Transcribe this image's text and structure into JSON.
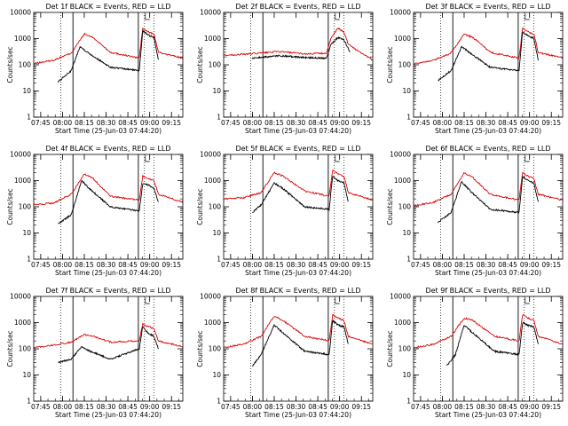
{
  "chart_data": {
    "type": "line",
    "yscale": "log",
    "ylim": [
      1,
      10000
    ],
    "xlim_hours": [
      7.67,
      9.38
    ],
    "x_tick_labels": [
      "07:45",
      "08:00",
      "08:15",
      "08:30",
      "08:45",
      "09:00",
      "09:15"
    ],
    "y_tick_labels": [
      "1",
      "10",
      "100",
      "1000",
      "10000"
    ],
    "ylabel": "Counts/sec",
    "xlabel": "Start Time (25-Jun-03 07:44:20)",
    "legend_text": "BLACK = Events, RED = LLD",
    "colors": {
      "events": "#000000",
      "lld": "#dd0000"
    },
    "panels": [
      {
        "title": "Det 1f",
        "events": [
          [
            7.95,
            22
          ],
          [
            8.1,
            60
          ],
          [
            8.2,
            500
          ],
          [
            8.3,
            280
          ],
          [
            8.55,
            80
          ],
          [
            8.88,
            60
          ],
          [
            8.92,
            2000
          ],
          [
            8.98,
            1400
          ],
          [
            9.05,
            1100
          ],
          [
            9.1,
            150
          ]
        ],
        "lld": [
          [
            7.67,
            110
          ],
          [
            7.9,
            150
          ],
          [
            8.1,
            280
          ],
          [
            8.25,
            1500
          ],
          [
            8.35,
            1100
          ],
          [
            8.55,
            300
          ],
          [
            8.88,
            180
          ],
          [
            8.92,
            2500
          ],
          [
            8.98,
            1800
          ],
          [
            9.05,
            1500
          ],
          [
            9.1,
            300
          ],
          [
            9.38,
            180
          ]
        ]
      },
      {
        "title": "Det 2f",
        "events": [
          [
            8.0,
            180
          ],
          [
            8.3,
            220
          ],
          [
            8.6,
            190
          ],
          [
            8.85,
            180
          ],
          [
            8.9,
            600
          ],
          [
            8.98,
            1100
          ],
          [
            9.05,
            900
          ],
          [
            9.12,
            300
          ]
        ],
        "lld": [
          [
            7.67,
            230
          ],
          [
            7.9,
            250
          ],
          [
            8.3,
            320
          ],
          [
            8.6,
            260
          ],
          [
            8.85,
            280
          ],
          [
            8.9,
            1000
          ],
          [
            8.98,
            2500
          ],
          [
            9.05,
            1800
          ],
          [
            9.1,
            600
          ],
          [
            9.38,
            150
          ]
        ]
      },
      {
        "title": "Det 3f",
        "events": [
          [
            7.95,
            25
          ],
          [
            8.1,
            60
          ],
          [
            8.22,
            500
          ],
          [
            8.32,
            280
          ],
          [
            8.55,
            80
          ],
          [
            8.88,
            60
          ],
          [
            8.92,
            1800
          ],
          [
            8.98,
            1300
          ],
          [
            9.05,
            1000
          ],
          [
            9.1,
            150
          ]
        ],
        "lld": [
          [
            7.67,
            110
          ],
          [
            7.9,
            150
          ],
          [
            8.1,
            280
          ],
          [
            8.25,
            1500
          ],
          [
            8.35,
            1100
          ],
          [
            8.55,
            300
          ],
          [
            8.88,
            180
          ],
          [
            8.92,
            2500
          ],
          [
            8.98,
            1800
          ],
          [
            9.05,
            1500
          ],
          [
            9.1,
            300
          ],
          [
            9.38,
            180
          ]
        ]
      },
      {
        "title": "Det 4f",
        "events": [
          [
            7.95,
            22
          ],
          [
            8.1,
            50
          ],
          [
            8.22,
            1000
          ],
          [
            8.32,
            450
          ],
          [
            8.55,
            100
          ],
          [
            8.88,
            70
          ],
          [
            8.92,
            800
          ],
          [
            8.98,
            700
          ],
          [
            9.05,
            500
          ],
          [
            9.1,
            150
          ]
        ],
        "lld": [
          [
            7.67,
            120
          ],
          [
            7.9,
            140
          ],
          [
            8.1,
            300
          ],
          [
            8.25,
            1800
          ],
          [
            8.35,
            1200
          ],
          [
            8.55,
            250
          ],
          [
            8.88,
            180
          ],
          [
            8.92,
            1500
          ],
          [
            8.98,
            1200
          ],
          [
            9.05,
            1000
          ],
          [
            9.1,
            300
          ],
          [
            9.38,
            150
          ]
        ]
      },
      {
        "title": "Det 5f",
        "events": [
          [
            8.0,
            60
          ],
          [
            8.1,
            120
          ],
          [
            8.25,
            800
          ],
          [
            8.35,
            500
          ],
          [
            8.6,
            100
          ],
          [
            8.88,
            80
          ],
          [
            8.92,
            1500
          ],
          [
            8.98,
            1000
          ],
          [
            9.05,
            800
          ],
          [
            9.1,
            150
          ]
        ],
        "lld": [
          [
            7.67,
            200
          ],
          [
            7.9,
            220
          ],
          [
            8.1,
            350
          ],
          [
            8.25,
            2000
          ],
          [
            8.35,
            1500
          ],
          [
            8.6,
            400
          ],
          [
            8.88,
            250
          ],
          [
            8.92,
            2500
          ],
          [
            8.98,
            1800
          ],
          [
            9.05,
            1500
          ],
          [
            9.1,
            350
          ],
          [
            9.38,
            180
          ]
        ]
      },
      {
        "title": "Det 6f",
        "events": [
          [
            7.95,
            25
          ],
          [
            8.1,
            60
          ],
          [
            8.22,
            900
          ],
          [
            8.32,
            400
          ],
          [
            8.55,
            80
          ],
          [
            8.88,
            60
          ],
          [
            8.92,
            1500
          ],
          [
            8.98,
            1000
          ],
          [
            9.05,
            800
          ],
          [
            9.1,
            150
          ]
        ],
        "lld": [
          [
            7.67,
            110
          ],
          [
            7.9,
            150
          ],
          [
            8.1,
            300
          ],
          [
            8.25,
            2000
          ],
          [
            8.35,
            1300
          ],
          [
            8.55,
            300
          ],
          [
            8.88,
            180
          ],
          [
            8.92,
            2000
          ],
          [
            8.98,
            1500
          ],
          [
            9.05,
            1200
          ],
          [
            9.1,
            300
          ],
          [
            9.38,
            180
          ]
        ]
      },
      {
        "title": "Det 7f",
        "events": [
          [
            7.95,
            30
          ],
          [
            8.1,
            40
          ],
          [
            8.22,
            120
          ],
          [
            8.32,
            80
          ],
          [
            8.55,
            40
          ],
          [
            8.88,
            100
          ],
          [
            8.92,
            700
          ],
          [
            8.98,
            400
          ],
          [
            9.05,
            300
          ],
          [
            9.1,
            100
          ]
        ],
        "lld": [
          [
            7.67,
            110
          ],
          [
            7.9,
            140
          ],
          [
            8.1,
            180
          ],
          [
            8.25,
            350
          ],
          [
            8.35,
            300
          ],
          [
            8.55,
            180
          ],
          [
            8.88,
            200
          ],
          [
            8.92,
            900
          ],
          [
            8.98,
            700
          ],
          [
            9.05,
            600
          ],
          [
            9.1,
            200
          ],
          [
            9.38,
            120
          ]
        ]
      },
      {
        "title": "Det 8f",
        "events": [
          [
            8.0,
            22
          ],
          [
            8.1,
            60
          ],
          [
            8.25,
            800
          ],
          [
            8.35,
            400
          ],
          [
            8.6,
            80
          ],
          [
            8.88,
            60
          ],
          [
            8.92,
            1200
          ],
          [
            8.98,
            800
          ],
          [
            9.05,
            700
          ],
          [
            9.1,
            150
          ]
        ],
        "lld": [
          [
            7.67,
            110
          ],
          [
            7.9,
            150
          ],
          [
            8.1,
            300
          ],
          [
            8.25,
            1800
          ],
          [
            8.35,
            1200
          ],
          [
            8.6,
            300
          ],
          [
            8.88,
            200
          ],
          [
            8.92,
            2000
          ],
          [
            8.98,
            1500
          ],
          [
            9.05,
            1200
          ],
          [
            9.1,
            300
          ],
          [
            9.38,
            150
          ]
        ]
      },
      {
        "title": "Det 9f",
        "events": [
          [
            8.05,
            22
          ],
          [
            8.15,
            60
          ],
          [
            8.25,
            800
          ],
          [
            8.35,
            400
          ],
          [
            8.6,
            80
          ],
          [
            8.88,
            60
          ],
          [
            8.92,
            1000
          ],
          [
            8.98,
            800
          ],
          [
            9.05,
            700
          ],
          [
            9.1,
            150
          ]
        ],
        "lld": [
          [
            7.67,
            110
          ],
          [
            7.9,
            150
          ],
          [
            8.1,
            300
          ],
          [
            8.25,
            1500
          ],
          [
            8.35,
            1200
          ],
          [
            8.6,
            300
          ],
          [
            8.88,
            200
          ],
          [
            8.92,
            2000
          ],
          [
            8.98,
            1500
          ],
          [
            9.05,
            1200
          ],
          [
            9.1,
            300
          ],
          [
            9.38,
            150
          ]
        ]
      }
    ],
    "vlines_solid_hours": [
      8.12,
      8.87
    ],
    "vlines_dotted_hours": [
      7.98,
      8.94,
      9.05
    ]
  }
}
